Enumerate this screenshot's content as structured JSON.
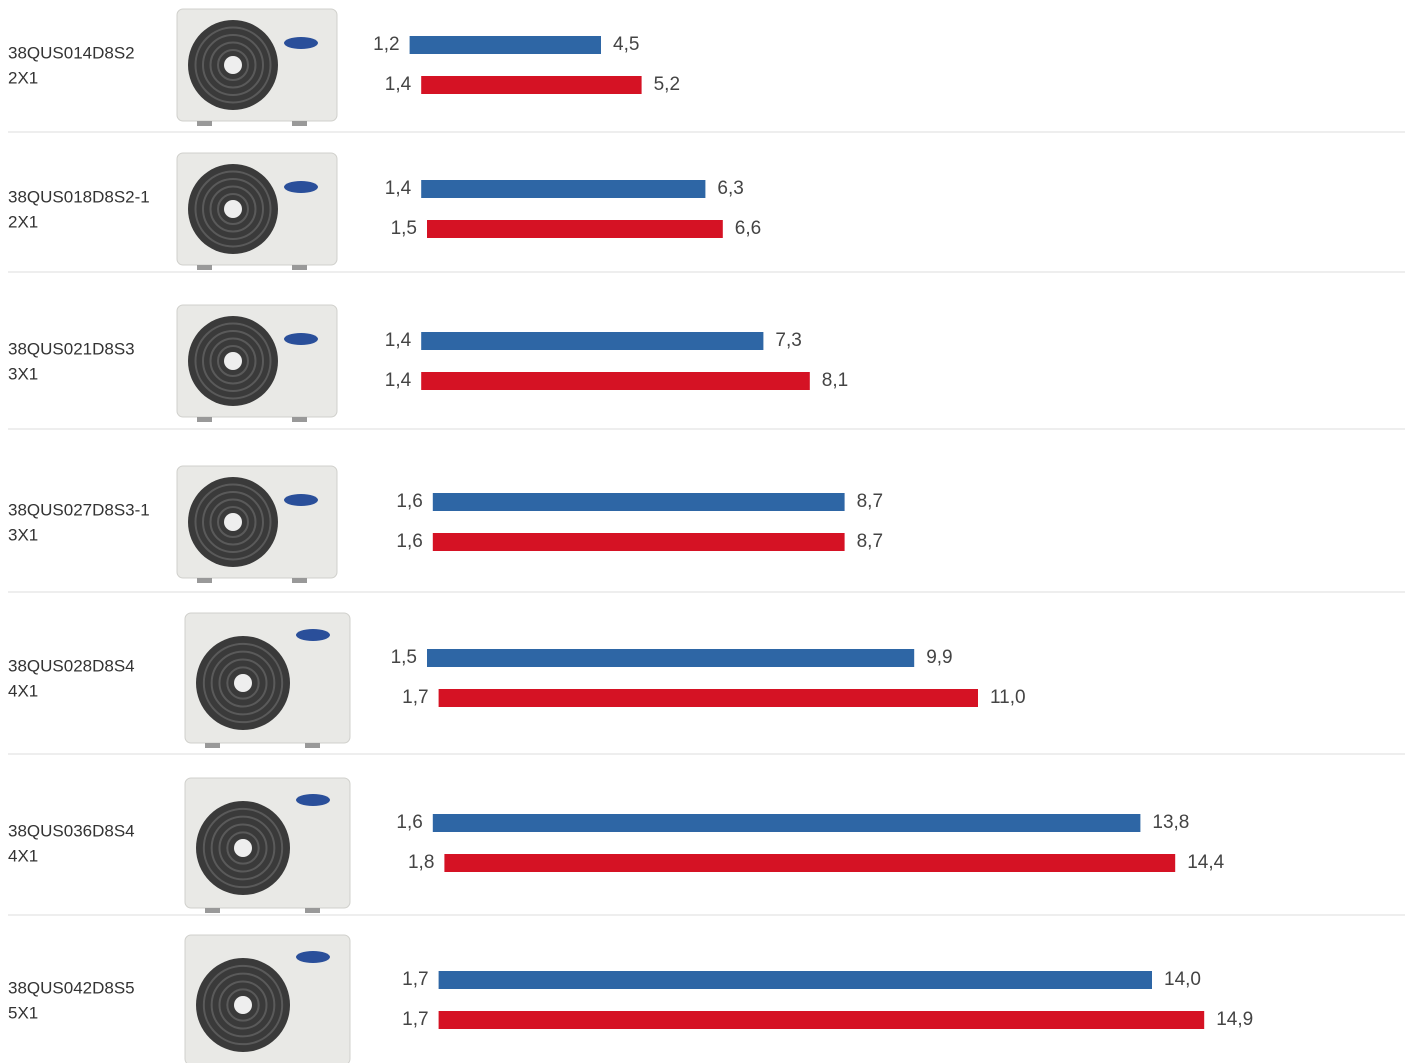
{
  "chart_data": {
    "type": "range-bar",
    "categories": [
      "38QUS014D8S2",
      "38QUS018D8S2-1",
      "38QUS021D8S3",
      "38QUS027D8S3-1",
      "38QUS028D8S4",
      "38QUS036D8S4",
      "38QUS042D8S5"
    ],
    "configurations": [
      "2X1",
      "2X1",
      "3X1",
      "3X1",
      "4X1",
      "4X1",
      "5X1"
    ],
    "series": [
      {
        "color": "#2e66a5",
        "values": [
          [
            1.2,
            4.5
          ],
          [
            1.4,
            6.3
          ],
          [
            1.4,
            7.3
          ],
          [
            1.6,
            8.7
          ],
          [
            1.5,
            9.9
          ],
          [
            1.6,
            13.8
          ],
          [
            1.7,
            14.0
          ]
        ],
        "value_labels": [
          [
            "1,2",
            "4,5"
          ],
          [
            "1,4",
            "6,3"
          ],
          [
            "1,4",
            "7,3"
          ],
          [
            "1,6",
            "8,7"
          ],
          [
            "1,5",
            "9,9"
          ],
          [
            "1,6",
            "13,8"
          ],
          [
            "1,7",
            "14,0"
          ]
        ]
      },
      {
        "color": "#d51224",
        "values": [
          [
            1.4,
            5.2
          ],
          [
            1.5,
            6.6
          ],
          [
            1.4,
            8.1
          ],
          [
            1.6,
            8.7
          ],
          [
            1.7,
            11.0
          ],
          [
            1.8,
            14.4
          ],
          [
            1.7,
            14.9
          ]
        ],
        "value_labels": [
          [
            "1,4",
            "5,2"
          ],
          [
            "1,5",
            "6,6"
          ],
          [
            "1,4",
            "8,1"
          ],
          [
            "1,6",
            "8,7"
          ],
          [
            "1,7",
            "11,0"
          ],
          [
            "1,8",
            "14,4"
          ],
          [
            "1,7",
            "14,9"
          ]
        ]
      }
    ]
  }
}
